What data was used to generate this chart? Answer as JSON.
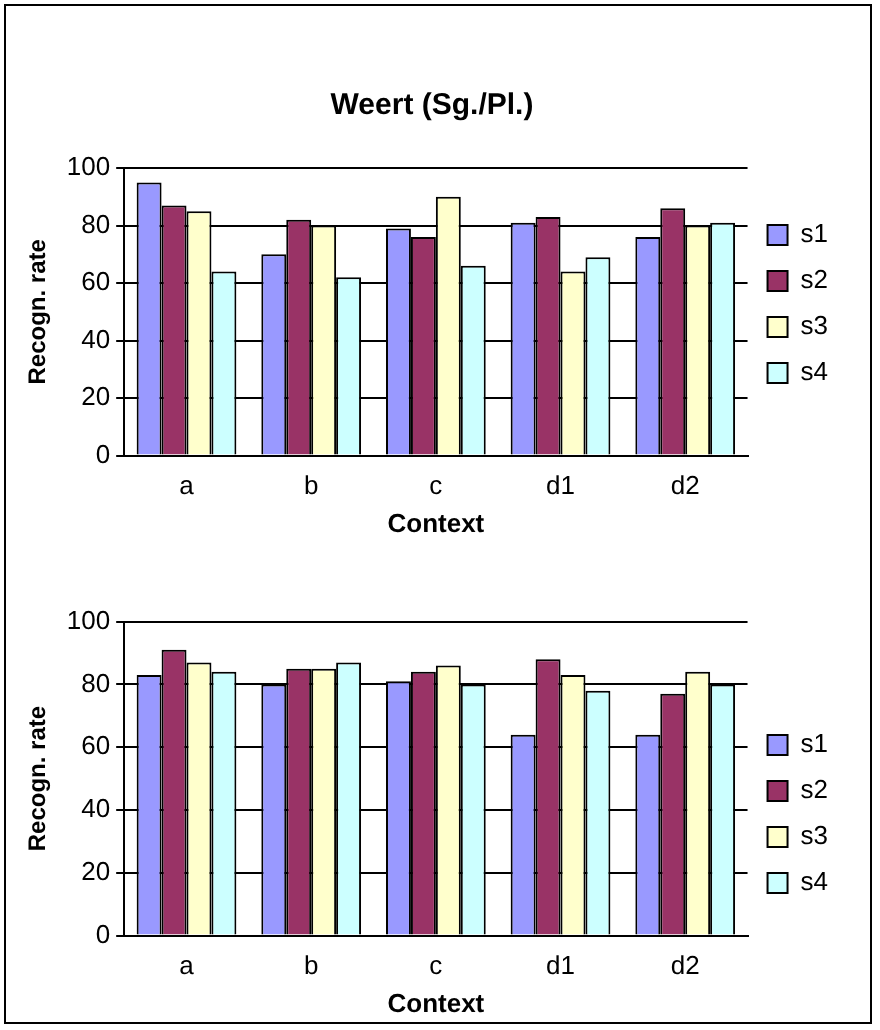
{
  "chart_data": [
    {
      "type": "bar",
      "title": "Weert (Sg./Pl.)",
      "xlabel": "Context",
      "ylabel": "Recogn. rate",
      "categories": [
        "a",
        "b",
        "c",
        "d1",
        "d2"
      ],
      "series": [
        {
          "name": "s1",
          "color": "#9999ff",
          "values": [
            95,
            70,
            79,
            81,
            76
          ]
        },
        {
          "name": "s2",
          "color": "#993366",
          "values": [
            87,
            82,
            76,
            83,
            86
          ]
        },
        {
          "name": "s3",
          "color": "#ffffcc",
          "values": [
            85,
            80,
            90,
            64,
            80
          ]
        },
        {
          "name": "s4",
          "color": "#ccffff",
          "values": [
            64,
            62,
            66,
            69,
            81
          ]
        }
      ],
      "ylim": [
        0,
        100
      ],
      "yticks": [
        0,
        20,
        40,
        60,
        80,
        100
      ],
      "grid": "y",
      "legend": "right"
    },
    {
      "type": "bar",
      "xlabel": "Context",
      "ylabel": "Recogn. rate",
      "categories": [
        "a",
        "b",
        "c",
        "d1",
        "d2"
      ],
      "series": [
        {
          "name": "s1",
          "color": "#9999ff",
          "values": [
            83,
            80,
            81,
            64,
            64
          ]
        },
        {
          "name": "s2",
          "color": "#993366",
          "values": [
            91,
            85,
            84,
            88,
            77
          ]
        },
        {
          "name": "s3",
          "color": "#ffffcc",
          "values": [
            87,
            85,
            86,
            83,
            84
          ]
        },
        {
          "name": "s4",
          "color": "#ccffff",
          "values": [
            84,
            87,
            80,
            78,
            80
          ]
        }
      ],
      "ylim": [
        0,
        100
      ],
      "yticks": [
        0,
        20,
        40,
        60,
        80,
        100
      ],
      "grid": "y",
      "legend": "right"
    }
  ]
}
